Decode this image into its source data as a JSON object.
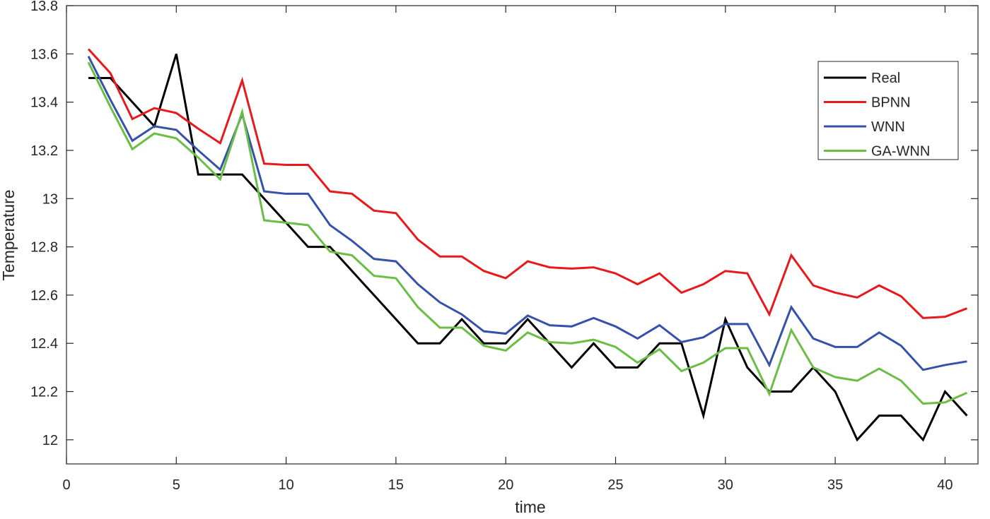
{
  "chart_data": {
    "type": "line",
    "title": "",
    "xlabel": "time",
    "ylabel": "Temperature",
    "xlim": [
      0,
      41.5
    ],
    "ylim": [
      11.9,
      13.8
    ],
    "xticks": [
      0,
      5,
      10,
      15,
      20,
      25,
      30,
      35,
      40
    ],
    "yticks": [
      12,
      12.2,
      12.4,
      12.6,
      12.8,
      13,
      13.2,
      13.4,
      13.6,
      13.8
    ],
    "ytick_labels": [
      "12",
      "12.2",
      "12.4",
      "12.6",
      "12.8",
      "13",
      "13.2",
      "13.4",
      "13.6",
      "13.8"
    ],
    "grid": false,
    "legend_position": "top-right",
    "x": [
      1,
      2,
      3,
      4,
      5,
      6,
      7,
      8,
      9,
      10,
      11,
      12,
      13,
      14,
      15,
      16,
      17,
      18,
      19,
      20,
      21,
      22,
      23,
      24,
      25,
      26,
      27,
      28,
      29,
      30,
      31,
      32,
      33,
      34,
      35,
      36,
      37,
      38,
      39,
      40,
      41
    ],
    "series": [
      {
        "name": "Real",
        "color": "#000000",
        "values": [
          13.5,
          13.5,
          13.4,
          13.3,
          13.6,
          13.1,
          13.1,
          13.1,
          13.0,
          12.9,
          12.8,
          12.8,
          12.7,
          12.6,
          12.5,
          12.4,
          12.4,
          12.5,
          12.4,
          12.4,
          12.5,
          12.4,
          12.3,
          12.4,
          12.3,
          12.3,
          12.4,
          12.4,
          12.1,
          12.5,
          12.3,
          12.2,
          12.2,
          12.3,
          12.2,
          12.0,
          12.1,
          12.1,
          12.0,
          12.2,
          12.1
        ]
      },
      {
        "name": "BPNN",
        "color": "#e8191c",
        "values": [
          13.62,
          13.52,
          13.33,
          13.375,
          13.355,
          13.29,
          13.23,
          13.49,
          13.145,
          13.14,
          13.14,
          13.03,
          13.02,
          12.95,
          12.94,
          12.83,
          12.76,
          12.76,
          12.7,
          12.67,
          12.74,
          12.715,
          12.71,
          12.715,
          12.69,
          12.645,
          12.69,
          12.61,
          12.645,
          12.7,
          12.69,
          12.52,
          12.765,
          12.64,
          12.61,
          12.59,
          12.64,
          12.595,
          12.505,
          12.51,
          12.545
        ]
      },
      {
        "name": "WNN",
        "color": "#3552a8",
        "values": [
          13.59,
          13.41,
          13.24,
          13.3,
          13.285,
          13.2,
          13.12,
          13.35,
          13.03,
          13.02,
          13.02,
          12.89,
          12.825,
          12.75,
          12.74,
          12.645,
          12.57,
          12.52,
          12.45,
          12.44,
          12.515,
          12.475,
          12.47,
          12.505,
          12.47,
          12.42,
          12.475,
          12.405,
          12.425,
          12.48,
          12.48,
          12.31,
          12.55,
          12.42,
          12.385,
          12.385,
          12.445,
          12.39,
          12.29,
          12.31,
          12.325
        ]
      },
      {
        "name": "GA-WNN",
        "color": "#6abd45",
        "values": [
          13.565,
          13.38,
          13.205,
          13.27,
          13.25,
          13.17,
          13.08,
          13.36,
          12.91,
          12.9,
          12.89,
          12.78,
          12.765,
          12.68,
          12.67,
          12.55,
          12.465,
          12.465,
          12.39,
          12.37,
          12.445,
          12.405,
          12.4,
          12.415,
          12.385,
          12.32,
          12.375,
          12.285,
          12.32,
          12.38,
          12.38,
          12.19,
          12.455,
          12.3,
          12.26,
          12.245,
          12.295,
          12.245,
          12.15,
          12.155,
          12.195
        ]
      }
    ]
  }
}
